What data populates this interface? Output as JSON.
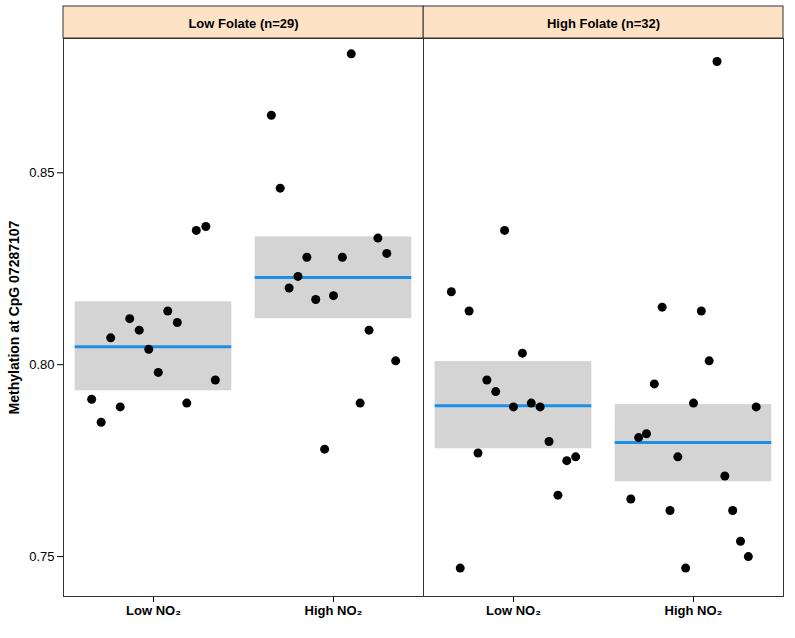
{
  "chart_data": {
    "type": "scatter",
    "y_label": "Methylation at CpG 07287107",
    "categories": [
      "Low NO₂",
      "High NO₂"
    ],
    "ylim": [
      0.7396,
      0.885
    ],
    "yticks": [
      0.75,
      {
        "value": 0.8,
        "label": "0.80"
      },
      0.85
    ],
    "panels": [
      {
        "title": "Low Folate (n=29)",
        "series": [
          {
            "name": "Low NO₂",
            "mean": 0.8047,
            "ci_low": 0.7932,
            "ci_high": 0.8164,
            "values": [
              0.791,
              0.785,
              0.807,
              0.789,
              0.812,
              0.809,
              0.804,
              0.798,
              0.814,
              0.811,
              0.79,
              0.835,
              0.836,
              0.796
            ]
          },
          {
            "name": "High NO₂",
            "mean": 0.8227,
            "ci_low": 0.812,
            "ci_high": 0.8333,
            "values": [
              0.865,
              0.846,
              0.82,
              0.823,
              0.828,
              0.817,
              0.778,
              0.818,
              0.828,
              0.881,
              0.79,
              0.809,
              0.833,
              0.829,
              0.801
            ]
          }
        ]
      },
      {
        "title": "High Folate (n=32)",
        "series": [
          {
            "name": "Low NO₂",
            "mean": 0.7893,
            "ci_low": 0.7781,
            "ci_high": 0.8008,
            "values": [
              0.819,
              0.747,
              0.814,
              0.777,
              0.796,
              0.793,
              0.835,
              0.789,
              0.803,
              0.79,
              0.789,
              0.78,
              0.766,
              0.775,
              0.776
            ]
          },
          {
            "name": "High NO₂",
            "mean": 0.7797,
            "ci_low": 0.7695,
            "ci_high": 0.7896,
            "values": [
              0.765,
              0.781,
              0.782,
              0.795,
              0.815,
              0.762,
              0.776,
              0.747,
              0.79,
              0.814,
              0.801,
              0.879,
              0.771,
              0.762,
              0.754,
              0.75,
              0.789
            ]
          }
        ]
      }
    ]
  }
}
